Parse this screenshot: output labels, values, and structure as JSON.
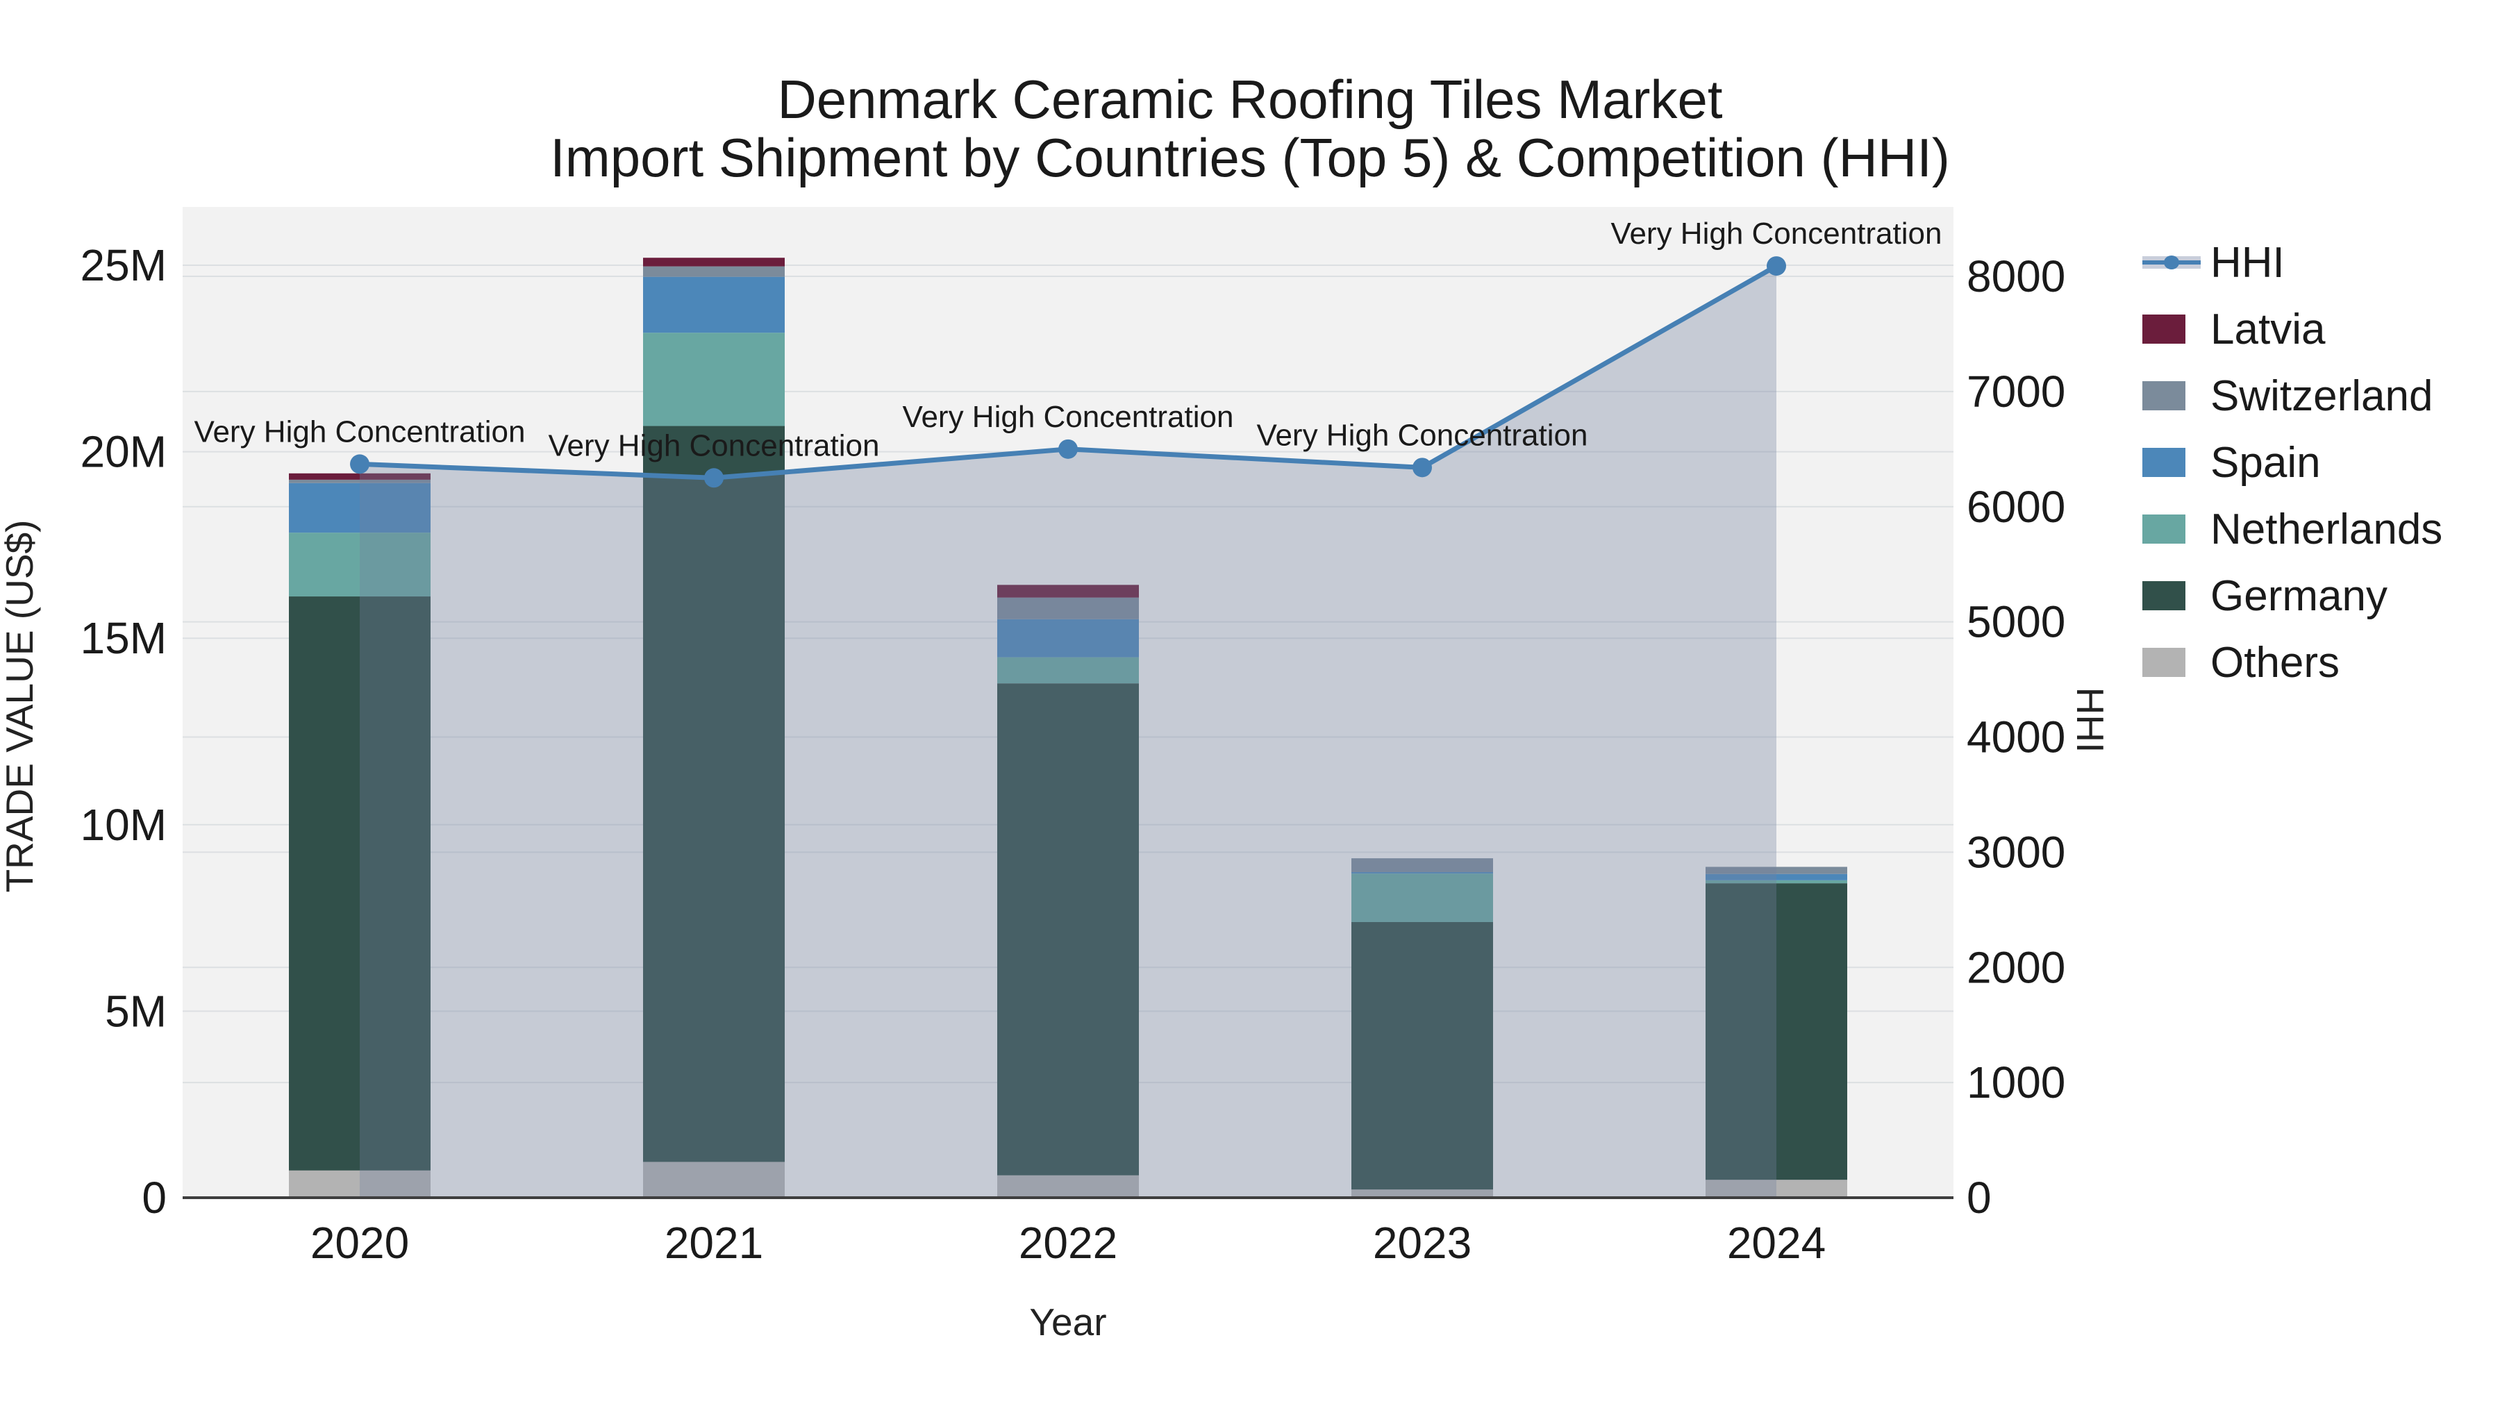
{
  "title": "Denmark Ceramic Roofing Tiles Market",
  "subtitle": "Import Shipment by Countries (Top 5) & Competition (HHI)",
  "axes": {
    "x_title": "Year",
    "y_left_title": "TRADE VALUE (US$)",
    "y_right_title": "HHI",
    "y_left_ticks": [
      "0",
      "5M",
      "10M",
      "15M",
      "20M",
      "25M"
    ],
    "y_left_tick_values_m": [
      0,
      5,
      10,
      15,
      20,
      25
    ],
    "y_right_ticks": [
      "0",
      "1000",
      "2000",
      "3000",
      "4000",
      "5000",
      "6000",
      "7000",
      "8000"
    ],
    "y_right_tick_values": [
      0,
      1000,
      2000,
      3000,
      4000,
      5000,
      6000,
      7000,
      8000
    ]
  },
  "chart_data": {
    "type": "bar",
    "subtype": "stacked-bars-with-line-overlay",
    "categories": [
      "2020",
      "2021",
      "2022",
      "2023",
      "2024"
    ],
    "units": "US$ millions (left axis), HHI index (right axis)",
    "ylim_left_m": [
      0,
      26.5
    ],
    "ylim_right": [
      0,
      8600
    ],
    "grid": "on",
    "legend_position": "right",
    "series": [
      {
        "name": "Others",
        "color": "#b3b3b3",
        "values_m": [
          0.73,
          0.96,
          0.6,
          0.22,
          0.48
        ]
      },
      {
        "name": "Germany",
        "color": "#31504a",
        "values_m": [
          15.39,
          19.73,
          13.19,
          7.17,
          7.95
        ]
      },
      {
        "name": "Netherlands",
        "color": "#68a7a2",
        "values_m": [
          1.71,
          2.5,
          0.7,
          1.3,
          0.08
        ]
      },
      {
        "name": "Spain",
        "color": "#4c87b9",
        "values_m": [
          1.33,
          1.5,
          1.02,
          0.04,
          0.17
        ]
      },
      {
        "name": "Switzerland",
        "color": "#7b8b9b",
        "values_m": [
          0.09,
          0.28,
          0.58,
          0.37,
          0.19
        ]
      },
      {
        "name": "Latvia",
        "color": "#6b1d3c",
        "values_m": [
          0.17,
          0.23,
          0.34,
          0.0,
          0.0
        ]
      }
    ],
    "bar_totals_m": [
      19.42,
      25.2,
      16.43,
      9.1,
      8.87
    ],
    "line_series": {
      "name": "HHI",
      "values": [
        6370,
        6250,
        6500,
        6340,
        8090
      ],
      "color": "#4680b4",
      "area_fill": "rgba(115,130,159,0.34)"
    },
    "annotations": [
      {
        "year": "2020",
        "text": "Very High Concentration"
      },
      {
        "year": "2021",
        "text": "Very High Concentration"
      },
      {
        "year": "2022",
        "text": "Very High Concentration"
      },
      {
        "year": "2023",
        "text": "Very High Concentration"
      },
      {
        "year": "2024",
        "text": "Very High Concentration"
      }
    ],
    "legend": [
      {
        "name": "HHI",
        "type": "line",
        "color": "#4680b4"
      },
      {
        "name": "Latvia",
        "type": "bar",
        "color": "#6b1d3c"
      },
      {
        "name": "Switzerland",
        "type": "bar",
        "color": "#7b8b9b"
      },
      {
        "name": "Spain",
        "type": "bar",
        "color": "#4c87b9"
      },
      {
        "name": "Netherlands",
        "type": "bar",
        "color": "#68a7a2"
      },
      {
        "name": "Germany",
        "type": "bar",
        "color": "#31504a"
      },
      {
        "name": "Others",
        "type": "bar",
        "color": "#b3b3b3"
      }
    ],
    "colors": {
      "plot_background": "#f2f2f2",
      "gridline": "#dcdfe2",
      "zero_line": "#3f3f3f",
      "text": "#1a1a1a"
    }
  }
}
